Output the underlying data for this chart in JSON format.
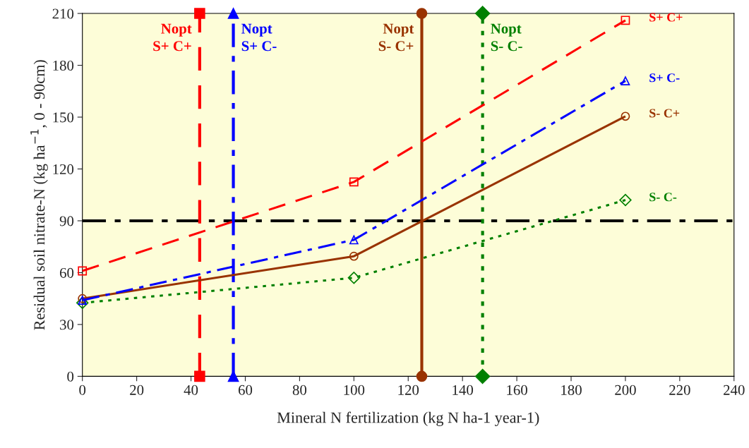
{
  "chart_data": {
    "type": "line",
    "xlabel": "Mineral N fertilization (kg N ha-1 year-1)",
    "ylabel": "Residual soil nitrate-N (kg ha$^{−1}$, 0 - 90cm)",
    "x": [
      0,
      100,
      200
    ],
    "series": [
      {
        "name": "S+ C+",
        "color": "#ff0000",
        "values": [
          61,
          112.5,
          206
        ],
        "marker": "square",
        "line_style": "dashed"
      },
      {
        "name": "S+ C-",
        "color": "#0000ff",
        "values": [
          44,
          79,
          171
        ],
        "marker": "triangle",
        "line_style": "dashdot"
      },
      {
        "name": "S- C+",
        "color": "#993300",
        "values": [
          45,
          69.5,
          150.5
        ],
        "marker": "circle",
        "line_style": "solid"
      },
      {
        "name": "S- C-",
        "color": "#008000",
        "values": [
          42.5,
          57,
          102
        ],
        "marker": "diamond",
        "line_style": "dotted"
      },
      {
        "name": "Nopt\nS+ C+",
        "color": "#ff0000",
        "x": [
          43.2,
          43.2
        ],
        "values": [
          0,
          210
        ],
        "marker": "square",
        "line_style": "dashed"
      },
      {
        "name": "Nopt\nS+ C-",
        "color": "#0000ff",
        "x": [
          55.6,
          55.6
        ],
        "values": [
          0,
          210
        ],
        "marker": "triangle",
        "line_style": "dashdot"
      },
      {
        "name": "Nopt\nS- C+",
        "color": "#993300",
        "x": [
          125,
          125
        ],
        "values": [
          0,
          210
        ],
        "marker": "circle",
        "line_style": "solid"
      },
      {
        "name": "Nopt\nS- C-",
        "color": "#008000",
        "x": [
          147.4,
          147.4
        ],
        "values": [
          0,
          210
        ],
        "marker": "diamond",
        "line_style": "dotted"
      }
    ],
    "ref_lines": [
      {
        "axis": "y",
        "value": 90,
        "color": "#000000",
        "line_style": "dashdot"
      }
    ],
    "xlim": [
      0,
      240
    ],
    "xticks": [
      0,
      20,
      40,
      60,
      80,
      100,
      120,
      140,
      160,
      180,
      200,
      220,
      240
    ],
    "ylim": [
      0,
      210
    ],
    "yticks": [
      0,
      30,
      60,
      90,
      120,
      150,
      180,
      210
    ],
    "grid": false,
    "legend": false
  }
}
